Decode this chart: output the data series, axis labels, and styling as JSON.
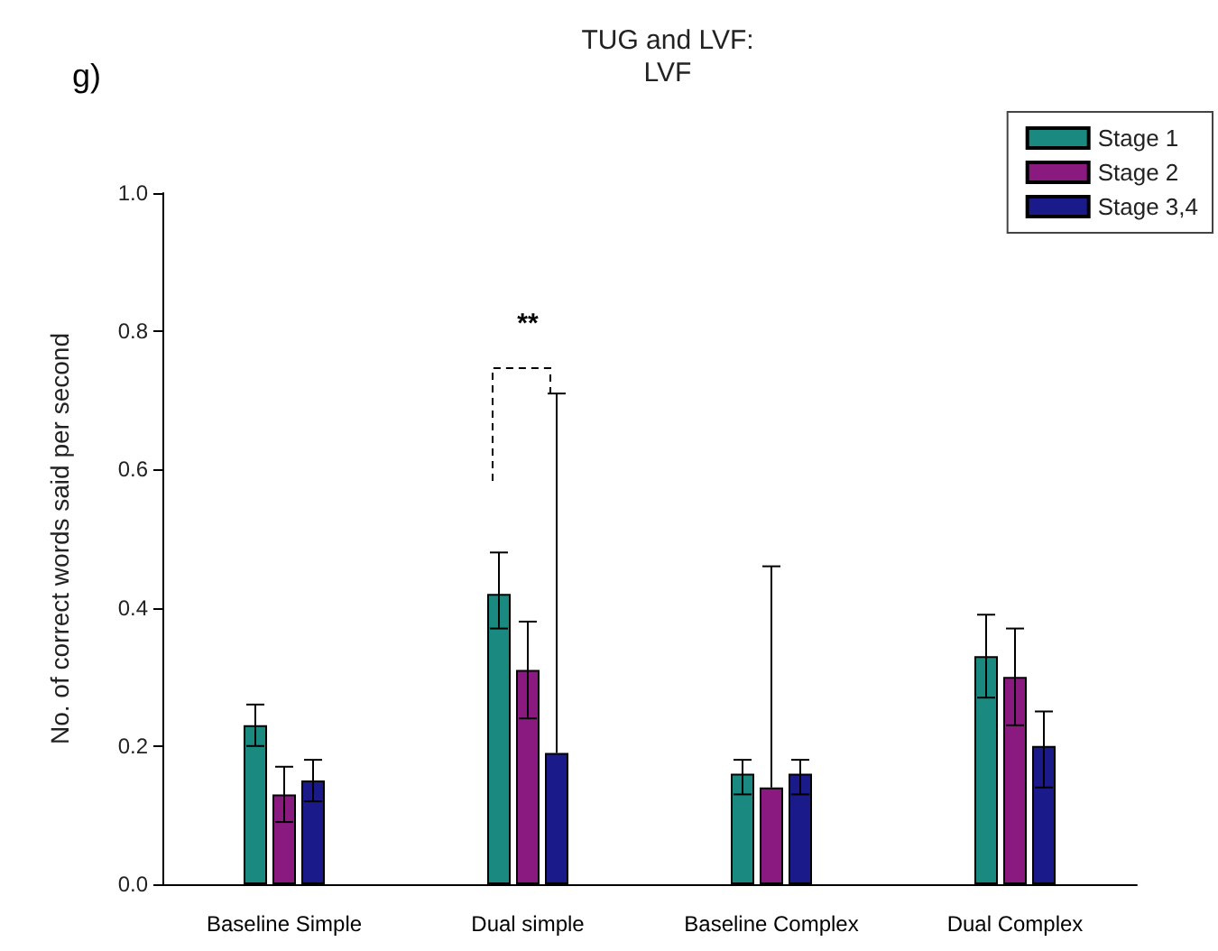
{
  "chart_data": {
    "type": "bar",
    "title": "TUG and LVF:",
    "subtitle": "LVF",
    "ylabel": "No. of correct words said per second",
    "categories": [
      "Baseline Simple",
      "Dual simple",
      "Baseline Complex",
      "Dual Complex"
    ],
    "series": [
      {
        "name": "Stage 1",
        "color": "#1a8a80",
        "values": [
          0.23,
          0.42,
          0.16,
          0.33
        ],
        "errors": [
          [
            0.2,
            0.26
          ],
          [
            0.37,
            0.48
          ],
          [
            0.13,
            0.18
          ],
          [
            0.27,
            0.39
          ]
        ]
      },
      {
        "name": "Stage 2",
        "color": "#8a1a80",
        "values": [
          0.13,
          0.31,
          0.14,
          0.3
        ],
        "errors": [
          [
            0.09,
            0.17
          ],
          [
            0.24,
            0.38
          ],
          [
            0.14,
            0.46
          ],
          [
            0.23,
            0.37
          ]
        ]
      },
      {
        "name": "Stage 3,4",
        "color": "#1a1a8a",
        "values": [
          0.15,
          0.19,
          0.16,
          0.2
        ],
        "errors": [
          [
            0.12,
            0.18
          ],
          [
            0.19,
            0.71
          ],
          [
            0.13,
            0.18
          ],
          [
            0.14,
            0.25
          ]
        ]
      }
    ],
    "ylim": [
      0,
      1
    ],
    "yticks": [
      {
        "value": 0,
        "label": "0.0"
      },
      {
        "value": 0.2,
        "label": "0.2"
      },
      {
        "value": 0.4,
        "label": "0.4"
      },
      {
        "value": 0.6,
        "label": "0.6"
      },
      {
        "value": 0.8,
        "label": "0.8"
      },
      {
        "value": 1,
        "label": "1.0"
      }
    ],
    "grid": false,
    "legend": "top right",
    "annotations": [
      "g)",
      "**"
    ]
  }
}
